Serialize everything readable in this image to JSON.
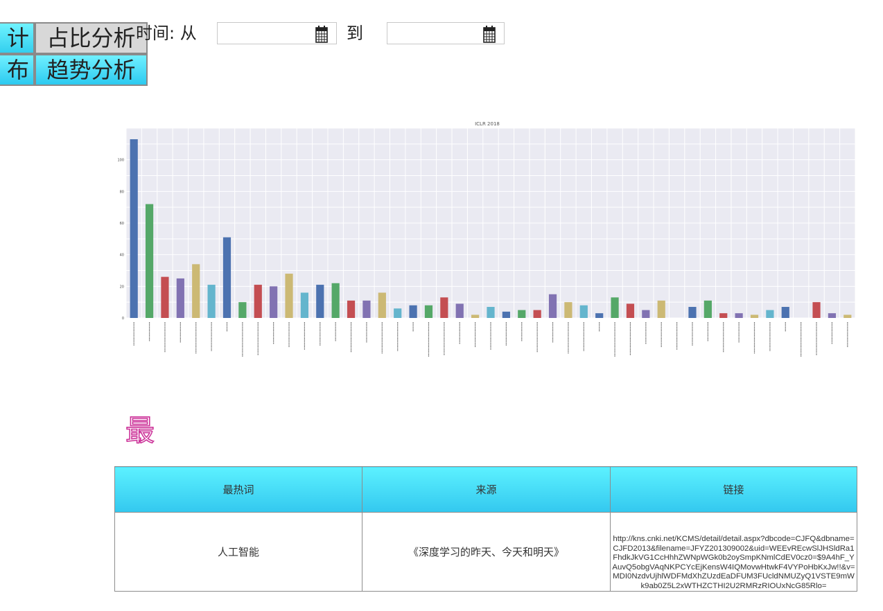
{
  "nav": {
    "stats_label": "计",
    "ratio_label": "占比分析",
    "distribution_label": "布",
    "trend_label": "趋势分析"
  },
  "filter": {
    "time_label": "时间: 从",
    "to_label": "到",
    "start_value": "",
    "end_value": ""
  },
  "icons": {
    "calendar": "calendar-icon",
    "hot": "hot-glyph-icon"
  },
  "hot_glyph": "最",
  "colors": {
    "accent_cyan": "#33cfee",
    "chart_bg": "#eaeaf2",
    "series_palette": [
      "#4c72b0",
      "#55a868",
      "#c44e52",
      "#8172b2",
      "#ccb974",
      "#64b5cd"
    ],
    "hot_icon": "#cc3399"
  },
  "table": {
    "headers": [
      "最热词",
      "来源",
      "链接"
    ],
    "rows": [
      {
        "word": "人工智能",
        "source": "《深度学习的昨天、今天和明天》",
        "link": "http://kns.cnki.net/KCMS/detail/detail.aspx?dbcode=CJFQ&dbname=CJFD2013&filename=JFYZ201309002&uid=WEEvREcwSlJHSldRa1FhdkJkVG1CcHhhZWNpWGk0b2oySmpKNmlCdEV0cz0=$9A4hF_YAuvQ5obgVAqNKPCYcEjKensW4IQMovwHtwkF4VYPoHbKxJw!!&v=MDI0NzdvUjhlWDFMdXhZUzdEaDFUM3FUcldNMUZyQ1VSTE9mWk9ab0Z5L2xWTHZCTHI2U2RMRzRIOUxNcG85Rlo="
      }
    ]
  },
  "chart_data": {
    "type": "bar",
    "title": "ICLR 2018",
    "yticks": [
      "100",
      "80",
      "60",
      "40",
      "20",
      "0"
    ],
    "ylim": [
      0,
      120
    ],
    "grid": true,
    "values": [
      113,
      72,
      26,
      25,
      34,
      21,
      51,
      10,
      21,
      20,
      28,
      16,
      21,
      22,
      11,
      11,
      16,
      6,
      8,
      8,
      13,
      9,
      2,
      7,
      4,
      5,
      5,
      15,
      10,
      8,
      3,
      13,
      9,
      5,
      11,
      0,
      7,
      11,
      3,
      3,
      2,
      5,
      7,
      0,
      10,
      3,
      2
    ]
  }
}
